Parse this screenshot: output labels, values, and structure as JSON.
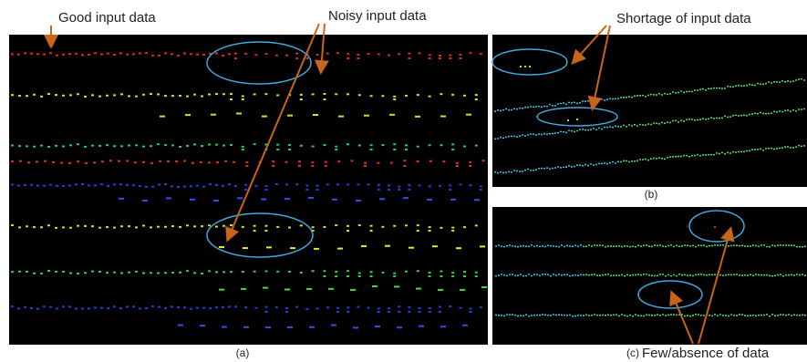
{
  "annotations": {
    "good": "Good input data",
    "noisy": "Noisy input data",
    "shortage": "Shortage of input data",
    "few": "Few/absence of data"
  },
  "captions": {
    "a": "(a)",
    "b": "(b)",
    "c": "(c)"
  }
}
